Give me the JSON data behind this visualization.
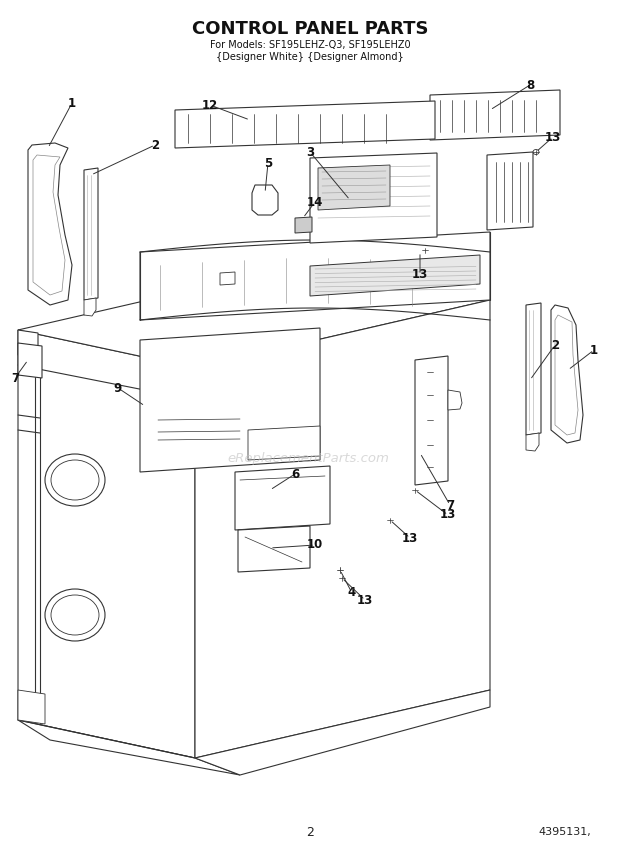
{
  "title_line1": "CONTROL PANEL PARTS",
  "title_line2": "For Models: SF195LEHZ-Q3, SF195LEHZ0",
  "title_line3": "{Designer White} {Designer Almond}",
  "page_number": "2",
  "part_number": "4395131,",
  "bg_color": "#ffffff",
  "line_color": "#333333",
  "title_color": "#111111",
  "watermark": "eReplacementParts.com"
}
